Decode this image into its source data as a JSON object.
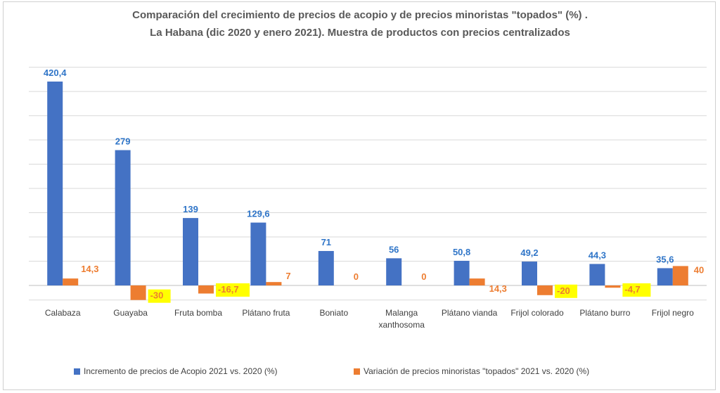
{
  "chart_data": {
    "type": "bar",
    "title_lines": [
      "Comparación del crecimiento de precios de acopio y de precios minoristas \"topados\" (%) .",
      "La Habana (dic 2020 y enero 2021). Muestra de productos con precios centralizados"
    ],
    "categories": [
      [
        "Calabaza"
      ],
      [
        "Guayaba"
      ],
      [
        "Fruta bomba"
      ],
      [
        "Plátano fruta"
      ],
      [
        "Boniato"
      ],
      [
        "Malanga",
        "xanthosoma"
      ],
      [
        "Plátano vianda"
      ],
      [
        "Frijol colorado"
      ],
      [
        "Plátano burro"
      ],
      [
        "Frijol negro"
      ]
    ],
    "series": [
      {
        "name": "Incremento de precios de Acopio 2021 vs. 2020 (%)",
        "color": "#4472c4",
        "values": [
          420.4,
          279,
          139,
          129.6,
          71,
          56,
          50.8,
          49.2,
          44.3,
          35.6
        ],
        "labels": [
          "420,4",
          "279",
          "139",
          "129,6",
          "71",
          "56",
          "50,8",
          "49,2",
          "44,3",
          "35,6"
        ]
      },
      {
        "name": "Variación de precios minoristas \"topados\" 2021 vs. 2020 (%)",
        "color": "#ed7d31",
        "values": [
          14.3,
          -30,
          -16.7,
          7,
          0,
          0,
          14.3,
          -20,
          -4.7,
          40
        ],
        "labels": [
          "14,3",
          "-30",
          "-16,7",
          "7",
          "0",
          "0",
          "14,3",
          "-20",
          "-4,7",
          "40"
        ],
        "highlighted": [
          false,
          true,
          true,
          false,
          false,
          false,
          false,
          true,
          true,
          false
        ]
      }
    ],
    "ylim": [
      -30,
      450
    ],
    "grid": true,
    "legend_position": "bottom",
    "label_highlight_color": "#ffff00"
  }
}
